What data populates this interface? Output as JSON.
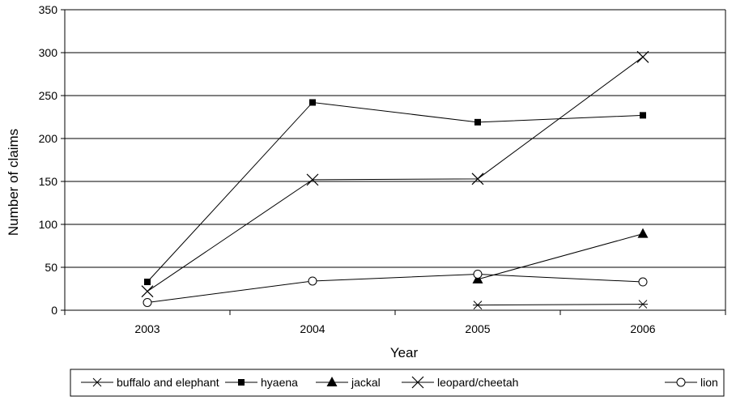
{
  "chart_data": {
    "type": "line",
    "title": "",
    "xlabel": "Year",
    "ylabel": "Number of claims",
    "categories": [
      "2003",
      "2004",
      "2005",
      "2006"
    ],
    "ylim": [
      0,
      350
    ],
    "yticks": [
      0,
      50,
      100,
      150,
      200,
      250,
      300,
      350
    ],
    "grid": "horizontal",
    "legend_position": "bottom",
    "series": [
      {
        "name": "buffalo and elephant",
        "marker": "asterisk",
        "values": [
          null,
          null,
          6,
          7
        ]
      },
      {
        "name": "hyaena",
        "marker": "square",
        "values": [
          33,
          242,
          219,
          227
        ]
      },
      {
        "name": "jackal",
        "marker": "triangle",
        "values": [
          null,
          null,
          36,
          89
        ]
      },
      {
        "name": "leopard/cheetah",
        "marker": "x",
        "values": [
          22,
          152,
          153,
          295
        ]
      },
      {
        "name": "lion",
        "marker": "circle",
        "values": [
          9,
          34,
          42,
          33
        ]
      }
    ],
    "colors": {
      "line": "#000000",
      "grid": "#000000",
      "background": "#ffffff"
    }
  }
}
